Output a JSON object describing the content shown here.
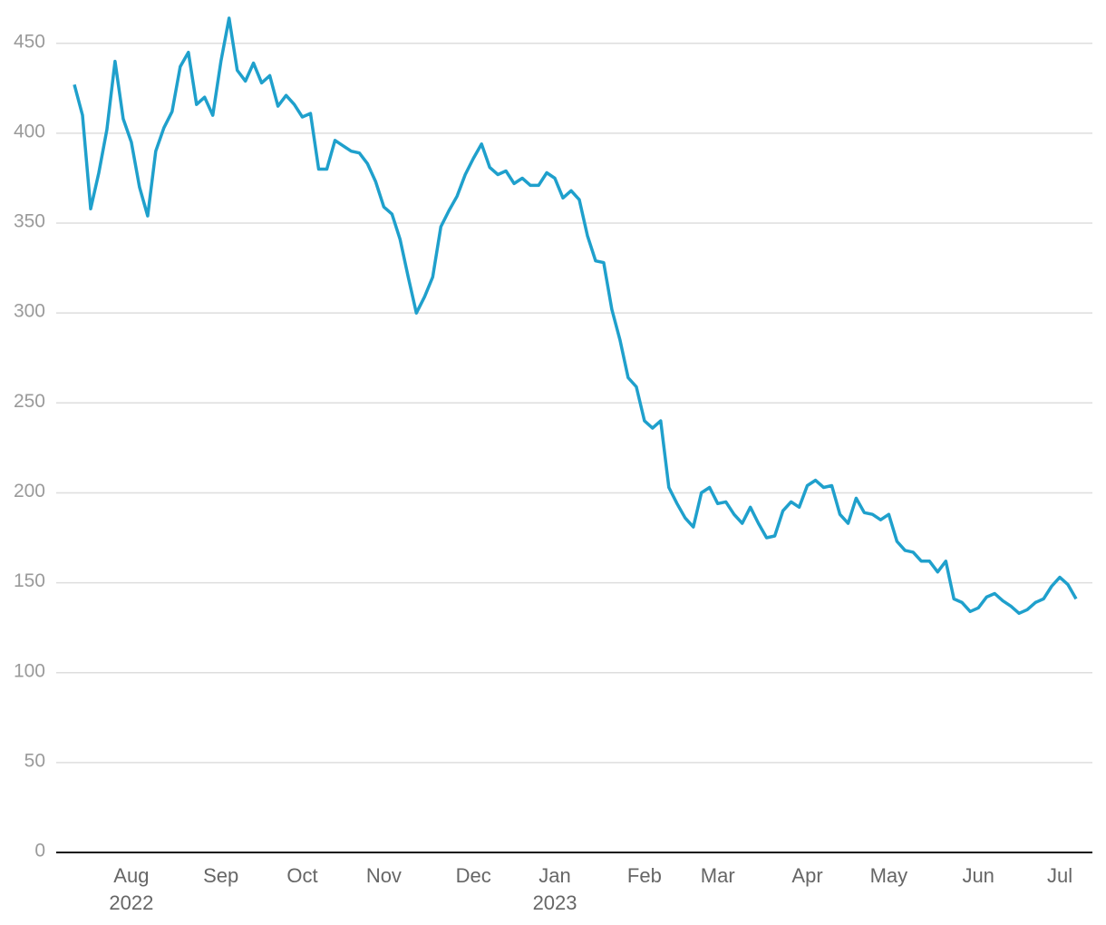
{
  "chart_data": {
    "type": "line",
    "categories": [
      null,
      null,
      null,
      null,
      null,
      null,
      null,
      "Aug",
      null,
      null,
      null,
      null,
      null,
      null,
      null,
      null,
      null,
      null,
      "Sep",
      null,
      null,
      null,
      null,
      null,
      null,
      null,
      null,
      null,
      "Oct",
      null,
      null,
      null,
      null,
      null,
      null,
      null,
      null,
      null,
      "Nov",
      null,
      null,
      null,
      null,
      null,
      null,
      null,
      null,
      null,
      null,
      "Dec",
      null,
      null,
      null,
      null,
      null,
      null,
      null,
      null,
      null,
      "Jan",
      null,
      null,
      null,
      null,
      null,
      null,
      null,
      null,
      null,
      null,
      "Feb",
      null,
      null,
      null,
      null,
      null,
      null,
      null,
      null,
      "Mar",
      null,
      null,
      null,
      null,
      null,
      null,
      null,
      null,
      null,
      null,
      "Apr",
      null,
      null,
      null,
      null,
      null,
      null,
      null,
      null,
      null,
      "May",
      null,
      null,
      null,
      null,
      null,
      null,
      null,
      null,
      null,
      null,
      "Jun",
      null,
      null,
      null,
      null,
      null,
      null,
      null,
      null,
      null,
      "Jul",
      null,
      null
    ],
    "category_years": [
      null,
      null,
      null,
      null,
      null,
      null,
      null,
      "2022",
      null,
      null,
      null,
      null,
      null,
      null,
      null,
      null,
      null,
      null,
      null,
      null,
      null,
      null,
      null,
      null,
      null,
      null,
      null,
      null,
      null,
      null,
      null,
      null,
      null,
      null,
      null,
      null,
      null,
      null,
      null,
      null,
      null,
      null,
      null,
      null,
      null,
      null,
      null,
      null,
      null,
      null,
      null,
      null,
      null,
      null,
      null,
      null,
      null,
      null,
      null,
      "2023",
      null,
      null,
      null,
      null,
      null,
      null,
      null,
      null,
      null,
      null,
      null,
      null,
      null,
      null,
      null,
      null,
      null,
      null,
      null,
      null,
      null,
      null,
      null,
      null,
      null,
      null,
      null,
      null,
      null,
      null,
      null,
      null,
      null,
      null,
      null,
      null,
      null,
      null,
      null,
      null,
      null,
      null,
      null,
      null,
      null,
      null,
      null,
      null,
      null,
      null,
      null,
      null,
      null,
      null,
      null,
      null,
      null,
      null,
      null,
      null,
      null,
      null,
      null,
      null
    ],
    "values": [
      427,
      410,
      358,
      378,
      402,
      440,
      408,
      395,
      370,
      354,
      390,
      403,
      412,
      437,
      445,
      416,
      420,
      410,
      440,
      464,
      435,
      429,
      439,
      428,
      432,
      415,
      421,
      416,
      409,
      411,
      380,
      380,
      396,
      393,
      390,
      389,
      383,
      373,
      359,
      355,
      341,
      320,
      300,
      309,
      320,
      348,
      357,
      365,
      377,
      386,
      394,
      381,
      377,
      379,
      372,
      375,
      371,
      371,
      378,
      375,
      364,
      368,
      363,
      343,
      329,
      328,
      302,
      285,
      264,
      259,
      240,
      236,
      240,
      203,
      194,
      186,
      181,
      200,
      203,
      194,
      195,
      188,
      183,
      192,
      183,
      175,
      176,
      190,
      195,
      192,
      204,
      207,
      203,
      204,
      188,
      183,
      197,
      189,
      188,
      185,
      188,
      173,
      168,
      167,
      162,
      162,
      156,
      162,
      141,
      139,
      134,
      136,
      142,
      144,
      140,
      137,
      133,
      135,
      139,
      141,
      148,
      153,
      149,
      141
    ],
    "color": "#1fa0cc",
    "ylim": [
      0,
      465
    ],
    "yticks": [
      0,
      50,
      100,
      150,
      200,
      250,
      300,
      350,
      400,
      450
    ],
    "grid": true
  }
}
